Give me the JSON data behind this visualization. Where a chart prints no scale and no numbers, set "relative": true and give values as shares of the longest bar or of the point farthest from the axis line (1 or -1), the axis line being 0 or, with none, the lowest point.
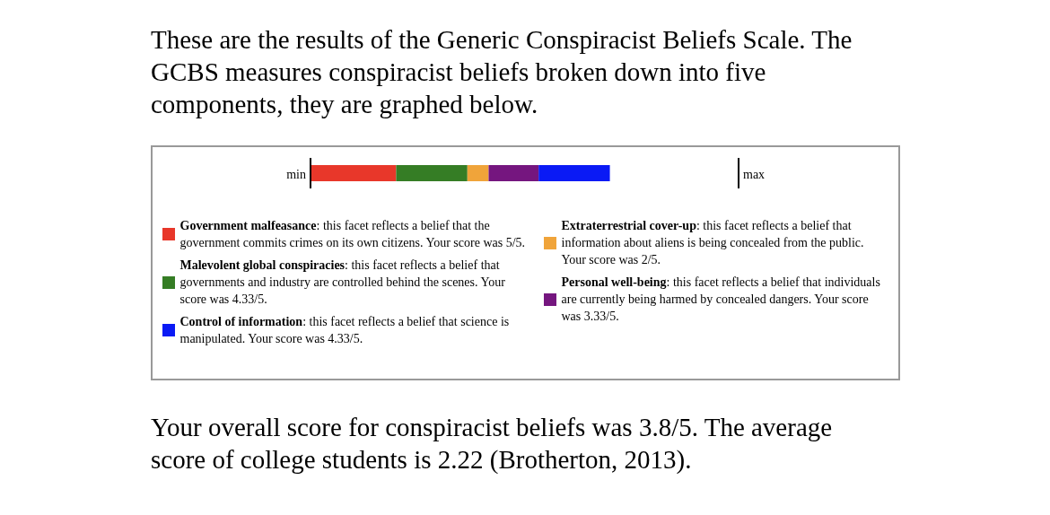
{
  "chart_data": {
    "type": "bar",
    "orientation": "horizontal",
    "stacked": true,
    "title": "These are the results of the Generic Conspiracist Beliefs Scale. The GCBS measures conspiracist beliefs broken down into five components, they are graphed below.",
    "categories": [
      null
    ],
    "relative": true,
    "ref_lines": [
      {
        "axis": "x",
        "value": 0,
        "label": "min"
      },
      {
        "axis": "x",
        "value": 1.43,
        "label": "max"
      }
    ],
    "legend": "bottom",
    "series": [
      {
        "name": "Government malfeasance: this facet reflects a belief that the government commits crimes on its own citizens. Your score was 5/5.",
        "color": "#e8372a",
        "values": [
          0.286
        ]
      },
      {
        "name": "Malevolent global conspiracies: this facet reflects a belief that governments and industry are controlled behind the scenes. Your score was 4.33/5.",
        "color": "#357d25",
        "values": [
          0.238
        ]
      },
      {
        "name": "Extraterrestrial cover-up: this facet reflects a belief that information about aliens is being concealed from the public. Your score was 2/5.",
        "color": "#f0a43a",
        "values": [
          0.071
        ]
      },
      {
        "name": "Personal well-being: this facet reflects a belief that individuals are currently being harmed by concealed dangers. Your score was 3.33/5.",
        "color": "#75167f",
        "values": [
          0.167
        ]
      },
      {
        "name": "Control of information: this facet reflects a belief that science is manipulated. Your score was 4.33/5.",
        "color": "#0a1af5",
        "values": [
          0.238
        ]
      }
    ],
    "annotations": [
      "Your overall score for conspiracist beliefs was 3.8/5. The average score of college students is 2.22 (Brotherton, 2013)."
    ]
  }
}
